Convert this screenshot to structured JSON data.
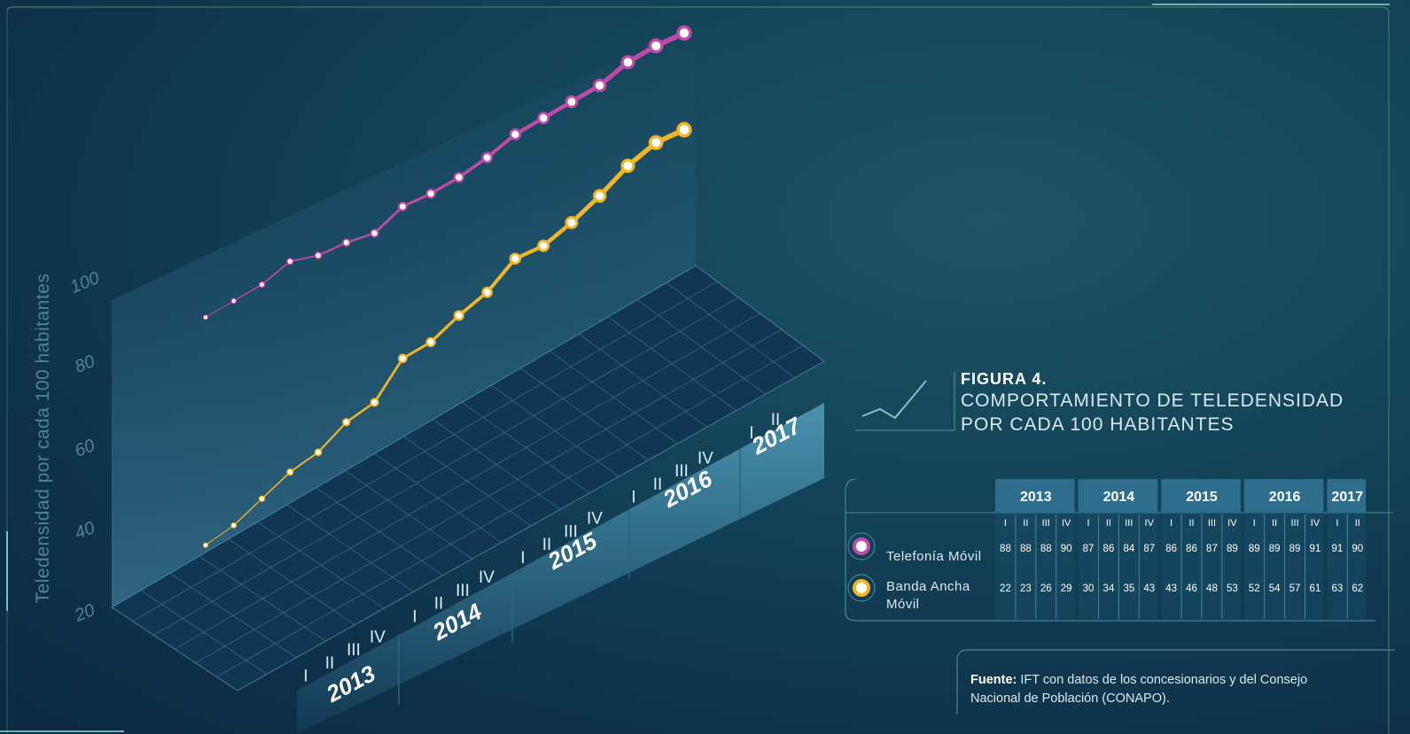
{
  "figure": {
    "number": "FIGURA 4.",
    "title_line1": "COMPORTAMIENTO DE TELEDENSIDAD",
    "title_line2": "POR CADA 100 HABITANTES"
  },
  "source": {
    "label": "Fuente:",
    "text_line1": "IFT con datos de los concesionarios y del Consejo",
    "text_line2": "Nacional de Población (CONAPO)."
  },
  "table": {
    "years": [
      "2013",
      "2014",
      "2015",
      "2016",
      "2017"
    ],
    "quarters": [
      [
        "I",
        "II",
        "III",
        "IV"
      ],
      [
        "I",
        "II",
        "III",
        "IV"
      ],
      [
        "I",
        "II",
        "III",
        "IV"
      ],
      [
        "I",
        "II",
        "III",
        "IV"
      ],
      [
        "I",
        "II"
      ]
    ],
    "rows": [
      {
        "label": "Telefonía Móvil",
        "values": [
          88,
          88,
          88,
          90,
          87,
          86,
          84,
          87,
          86,
          86,
          87,
          89,
          89,
          89,
          89,
          91,
          91,
          90
        ]
      },
      {
        "label_line1": "Banda Ancha",
        "label_line2": "Móvil",
        "values": [
          22,
          23,
          26,
          29,
          30,
          34,
          35,
          43,
          43,
          46,
          48,
          53,
          52,
          54,
          57,
          61,
          63,
          62
        ]
      }
    ]
  },
  "chart_data": {
    "type": "line",
    "ylabel": "Teledensidad por cada 100 habitantes",
    "yticks": [
      "100",
      "80",
      "60",
      "40",
      "20"
    ],
    "x": [
      "2013-I",
      "2013-II",
      "2013-III",
      "2013-IV",
      "2014-I",
      "2014-II",
      "2014-III",
      "2014-IV",
      "2015-I",
      "2015-II",
      "2015-III",
      "2015-IV",
      "2016-I",
      "2016-II",
      "2016-III",
      "2016-IV",
      "2017-I",
      "2017-II"
    ],
    "x_years": [
      "2013",
      "2014",
      "2015",
      "2016",
      "2017"
    ],
    "x_quarter_labels": [
      [
        "I",
        "II",
        "III",
        "IV"
      ],
      [
        "I",
        "II",
        "III",
        "IV"
      ],
      [
        "I",
        "II",
        "III",
        "IV"
      ],
      [
        "I",
        "II",
        "III",
        "IV"
      ],
      [
        "I",
        "II"
      ]
    ],
    "series": [
      {
        "name": "Telefonía Móvil",
        "color": "#c04aa8",
        "values": [
          88,
          88,
          88,
          90,
          87,
          86,
          84,
          87,
          86,
          86,
          87,
          89,
          89,
          89,
          89,
          91,
          91,
          90
        ]
      },
      {
        "name": "Banda Ancha Móvil",
        "color": "#f0b52a",
        "values": [
          22,
          23,
          26,
          29,
          30,
          34,
          35,
          43,
          43,
          46,
          48,
          53,
          52,
          54,
          57,
          61,
          63,
          62
        ]
      }
    ]
  }
}
